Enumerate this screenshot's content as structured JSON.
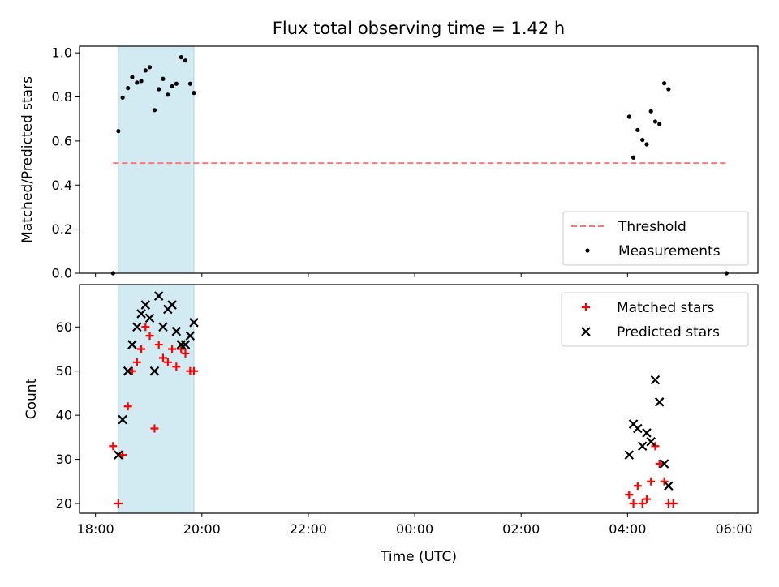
{
  "chart_data": {
    "title": "Flux total observing time = 1.42 h",
    "x_tick_labels": [
      "18:00",
      "20:00",
      "22:00",
      "00:00",
      "02:00",
      "04:00",
      "06:00"
    ],
    "x_tick_hours": [
      18,
      20,
      22,
      24,
      26,
      28,
      30
    ],
    "xlim_hours": [
      17.7,
      30.45
    ],
    "xlabel": "Time (UTC)",
    "shaded_interval_hours": [
      18.43,
      19.85
    ],
    "shade_color": "#add8e6",
    "panels": [
      {
        "type": "scatter",
        "ylabel": "Matched/Predicted stars",
        "ylim": [
          0,
          1.03
        ],
        "y_ticks": [
          0.0,
          0.2,
          0.4,
          0.6,
          0.8,
          1.0
        ],
        "y_tick_labels": [
          "0.0",
          "0.2",
          "0.4",
          "0.6",
          "0.8",
          "1.0"
        ],
        "threshold": {
          "name": "Threshold",
          "value": 0.5,
          "x_range": [
            18.33,
            29.9
          ],
          "color": "#ff7777"
        },
        "legend": {
          "position": "lower right",
          "entries": [
            "Threshold",
            "Measurements"
          ]
        },
        "series": [
          {
            "name": "Measurements",
            "marker": "dot",
            "color": "#000000",
            "points": [
              [
                18.33,
                0.0
              ],
              [
                18.43,
                0.645
              ],
              [
                18.51,
                0.797
              ],
              [
                18.61,
                0.84
              ],
              [
                18.69,
                0.89
              ],
              [
                18.78,
                0.865
              ],
              [
                18.86,
                0.872
              ],
              [
                18.94,
                0.92
              ],
              [
                19.02,
                0.935
              ],
              [
                19.11,
                0.74
              ],
              [
                19.19,
                0.835
              ],
              [
                19.27,
                0.882
              ],
              [
                19.36,
                0.81
              ],
              [
                19.44,
                0.848
              ],
              [
                19.52,
                0.86
              ],
              [
                19.61,
                0.98
              ],
              [
                19.69,
                0.965
              ],
              [
                19.78,
                0.86
              ],
              [
                19.85,
                0.818
              ],
              [
                28.03,
                0.71
              ],
              [
                28.11,
                0.525
              ],
              [
                28.19,
                0.65
              ],
              [
                28.28,
                0.605
              ],
              [
                28.36,
                0.585
              ],
              [
                28.44,
                0.735
              ],
              [
                28.52,
                0.688
              ],
              [
                28.6,
                0.677
              ],
              [
                28.69,
                0.862
              ],
              [
                28.77,
                0.835
              ],
              [
                29.86,
                0.0
              ]
            ]
          }
        ]
      },
      {
        "type": "scatter",
        "ylabel": "Count",
        "ylim": [
          17.8,
          69.6
        ],
        "y_ticks": [
          20,
          30,
          40,
          50,
          60
        ],
        "y_tick_labels": [
          "20",
          "30",
          "40",
          "50",
          "60"
        ],
        "legend": {
          "position": "upper right",
          "entries": [
            "Matched stars",
            "Predicted stars"
          ]
        },
        "series": [
          {
            "name": "Matched stars",
            "marker": "plus",
            "color": "#ff0000",
            "points": [
              [
                18.33,
                33
              ],
              [
                18.43,
                20
              ],
              [
                18.51,
                31
              ],
              [
                18.61,
                42
              ],
              [
                18.69,
                50
              ],
              [
                18.78,
                52
              ],
              [
                18.86,
                55
              ],
              [
                18.94,
                60
              ],
              [
                19.02,
                58
              ],
              [
                19.11,
                37
              ],
              [
                19.19,
                56
              ],
              [
                19.27,
                53
              ],
              [
                19.36,
                52
              ],
              [
                19.44,
                55
              ],
              [
                19.52,
                51
              ],
              [
                19.61,
                55
              ],
              [
                19.69,
                54
              ],
              [
                19.78,
                50
              ],
              [
                19.85,
                50
              ],
              [
                28.03,
                22
              ],
              [
                28.11,
                20
              ],
              [
                28.19,
                24
              ],
              [
                28.28,
                20
              ],
              [
                28.36,
                21
              ],
              [
                28.44,
                25
              ],
              [
                28.52,
                33
              ],
              [
                28.6,
                29
              ],
              [
                28.69,
                25
              ],
              [
                28.77,
                20
              ],
              [
                28.86,
                20
              ]
            ]
          },
          {
            "name": "Predicted stars",
            "marker": "x",
            "color": "#000000",
            "points": [
              [
                18.43,
                31
              ],
              [
                18.51,
                39
              ],
              [
                18.61,
                50
              ],
              [
                18.69,
                56
              ],
              [
                18.78,
                60
              ],
              [
                18.86,
                63
              ],
              [
                18.94,
                65
              ],
              [
                19.02,
                62
              ],
              [
                19.11,
                50
              ],
              [
                19.19,
                67
              ],
              [
                19.27,
                60
              ],
              [
                19.36,
                64
              ],
              [
                19.44,
                65
              ],
              [
                19.52,
                59
              ],
              [
                19.61,
                56
              ],
              [
                19.69,
                56
              ],
              [
                19.78,
                58
              ],
              [
                19.85,
                61
              ],
              [
                28.03,
                31
              ],
              [
                28.11,
                38
              ],
              [
                28.19,
                37
              ],
              [
                28.28,
                33
              ],
              [
                28.36,
                36
              ],
              [
                28.44,
                34
              ],
              [
                28.52,
                48
              ],
              [
                28.6,
                43
              ],
              [
                28.69,
                29
              ],
              [
                28.77,
                24
              ]
            ]
          }
        ]
      }
    ]
  }
}
